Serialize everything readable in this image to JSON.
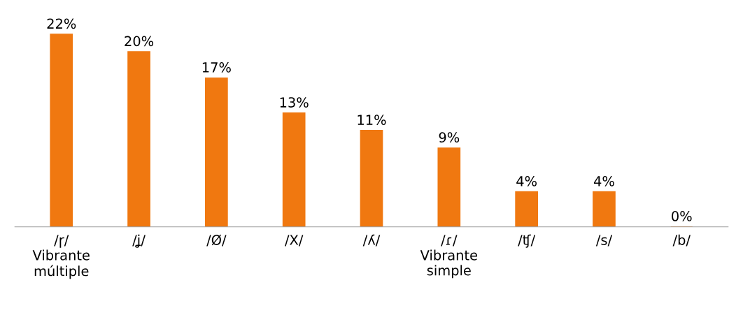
{
  "chart_data": {
    "type": "bar",
    "categories": [
      "/ɼ/\nVibrante\nmúltiple",
      "/ʝ/",
      "/Ø/",
      "/X/",
      "/ʎ/",
      "/ɾ/\nVibrante\nsimple",
      "/ʧ/",
      "/s/",
      "/b/"
    ],
    "values": [
      22,
      20,
      17,
      13,
      11,
      9,
      4,
      4,
      0
    ],
    "color": "#f07810",
    "data_labels": true,
    "value_labels": [
      "22%",
      "20%",
      "17%",
      "13%",
      "11%",
      "9%",
      "4%",
      "4%",
      "0%"
    ],
    "grid": false,
    "legend": false
  }
}
